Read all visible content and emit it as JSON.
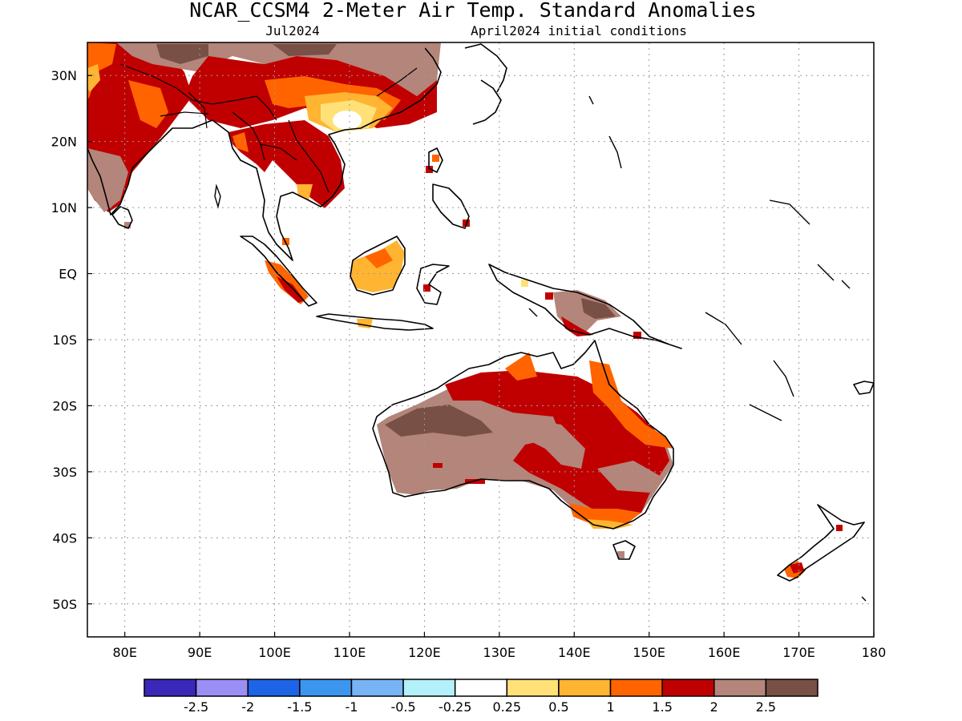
{
  "title": "NCAR_CCSM4 2-Meter Air Temp. Standard Anomalies",
  "subtitle_left": "Jul2024",
  "subtitle_right": "April2024 initial conditions",
  "lat_labels": [
    "30N",
    "20N",
    "10N",
    "EQ",
    "10S",
    "20S",
    "30S",
    "40S",
    "50S"
  ],
  "lat_values": [
    30,
    20,
    10,
    0,
    -10,
    -20,
    -30,
    -40,
    -50
  ],
  "lon_labels": [
    "80E",
    "90E",
    "100E",
    "110E",
    "120E",
    "130E",
    "140E",
    "150E",
    "160E",
    "170E",
    "180"
  ],
  "lon_values": [
    80,
    90,
    100,
    110,
    120,
    130,
    140,
    150,
    160,
    170,
    180
  ],
  "map_extent": {
    "lon_min": 75,
    "lon_max": 180,
    "lat_min": -55,
    "lat_max": 35
  },
  "colorbar": {
    "colors": [
      "#3a28b8",
      "#9b8ff5",
      "#1e64e6",
      "#3c96f0",
      "#78b4f5",
      "#b4f0fa",
      "#ffffff",
      "#ffe178",
      "#ffb432",
      "#ff6400",
      "#c00000",
      "#b4857a",
      "#785046"
    ],
    "tick_labels": [
      "-2.5",
      "-2",
      "-1.5",
      "-1",
      "-0.5",
      "-0.25",
      "0.25",
      "0.5",
      "1",
      "1.5",
      "2",
      "2.5"
    ]
  }
}
